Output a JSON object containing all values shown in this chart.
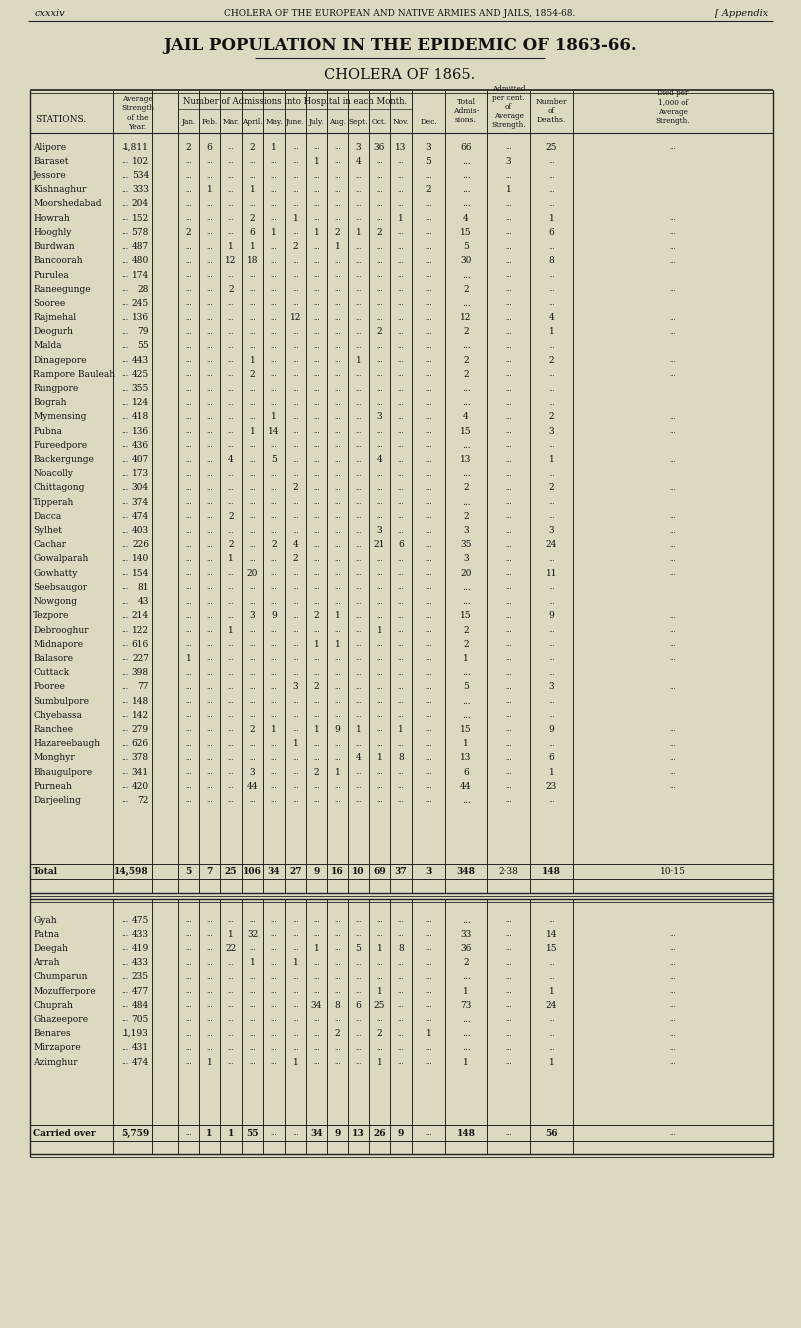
{
  "page_header_left": "cxxxiv",
  "page_header_center": "CHOLERA OF THE EUROPEAN AND NATIVE ARMIES AND JAILS, 1854-68.",
  "page_header_right": "[ Appendix",
  "title": "JAIL POPULATION IN THE EPIDEMIC OF 1863-66.",
  "subtitle": "CHOLERA OF 1865.",
  "months": [
    "Jan.",
    "Feb.",
    "Mar.",
    "April.",
    "May.",
    "June.",
    "July.",
    "Aug.",
    "Sept.",
    "Oct.",
    "Nov.",
    "Dec."
  ],
  "rows": [
    [
      "Alipore",
      "...",
      "1,811",
      "2",
      "6",
      "...",
      "2",
      "1",
      "...",
      "...",
      "...",
      "3",
      "36",
      "13",
      "3",
      "66",
      "...",
      "25",
      "..."
    ],
    [
      "Baraset",
      "...",
      "102",
      "...",
      "...",
      "...",
      "...",
      "...",
      "...",
      "1",
      "...",
      "4",
      "...",
      "...",
      "5",
      "...",
      "3",
      "..."
    ],
    [
      "Jessore",
      "...",
      "534",
      "...",
      "...",
      "...",
      "...",
      "...",
      "...",
      "...",
      "...",
      "...",
      "...",
      "...",
      "...",
      "...",
      "...",
      "..."
    ],
    [
      "Kishnaghur",
      "...",
      "333",
      "...",
      "1",
      "...",
      "1",
      "...",
      "...",
      "...",
      "...",
      "...",
      "...",
      "...",
      "2",
      "...",
      "1",
      "..."
    ],
    [
      "Moorshedabad",
      "...",
      "204",
      "...",
      "...",
      "...",
      "...",
      "...",
      "...",
      "...",
      "...",
      "...",
      "...",
      "...",
      "...",
      "...",
      "...",
      "..."
    ],
    [
      "Howrah",
      "...",
      "152",
      "...",
      "...",
      "...",
      "2",
      "...",
      "1",
      "...",
      "...",
      "...",
      "...",
      "1",
      "...",
      "4",
      "...",
      "1",
      "..."
    ],
    [
      "Hooghly",
      "...",
      "578",
      "2",
      "...",
      "...",
      "6",
      "1",
      "...",
      "1",
      "2",
      "1",
      "2",
      "...",
      "...",
      "15",
      "...",
      "6",
      "..."
    ],
    [
      "Burdwan",
      "...",
      "487",
      "...",
      "...",
      "1",
      "1",
      "...",
      "2",
      "...",
      "1",
      "...",
      "...",
      "...",
      "...",
      "5",
      "...",
      "...",
      "..."
    ],
    [
      "Bancoorah",
      "...",
      "480",
      "...",
      "...",
      "12",
      "18",
      "...",
      "...",
      "...",
      "...",
      "...",
      "...",
      "...",
      "...",
      "30",
      "...",
      "8",
      "..."
    ],
    [
      "Purulea",
      "...",
      "174",
      "...",
      "...",
      "...",
      "...",
      "...",
      "...",
      "...",
      "...",
      "...",
      "...",
      "...",
      "...",
      "...",
      "...",
      "..."
    ],
    [
      "Raneegunge",
      "...",
      "28",
      "...",
      "...",
      "2",
      "...",
      "...",
      "...",
      "...",
      "...",
      "...",
      "...",
      "...",
      "...",
      "2",
      "...",
      "...",
      "..."
    ],
    [
      "Sooree",
      "...",
      "245",
      "...",
      "...",
      "...",
      "...",
      "...",
      "...",
      "...",
      "...",
      "...",
      "...",
      "...",
      "...",
      "...",
      "...",
      "..."
    ],
    [
      "Rajmehal",
      "...",
      "136",
      "...",
      "...",
      "...",
      "...",
      "...",
      "12",
      "...",
      "...",
      "...",
      "...",
      "...",
      "...",
      "12",
      "...",
      "4",
      "..."
    ],
    [
      "Deogurh",
      "...",
      "79",
      "...",
      "...",
      "...",
      "...",
      "...",
      "...",
      "...",
      "...",
      "...",
      "2",
      "...",
      "...",
      "2",
      "...",
      "1",
      "..."
    ],
    [
      "Malda",
      "...",
      "55",
      "...",
      "...",
      "...",
      "...",
      "...",
      "...",
      "...",
      "...",
      "...",
      "...",
      "...",
      "...",
      "...",
      "...",
      "..."
    ],
    [
      "Dinagepore",
      "...",
      "443",
      "...",
      "...",
      "...",
      "1",
      "...",
      "...",
      "...",
      "...",
      "1",
      "...",
      "...",
      "...",
      "2",
      "...",
      "2",
      "..."
    ],
    [
      "Rampore Bauleah",
      "...",
      "425",
      "...",
      "...",
      "...",
      "2",
      "...",
      "...",
      "...",
      "...",
      "...",
      "...",
      "...",
      "...",
      "2",
      "...",
      "...",
      "..."
    ],
    [
      "Rungpore",
      "...",
      "355",
      "...",
      "...",
      "...",
      "...",
      "...",
      "...",
      "...",
      "...",
      "...",
      "...",
      "...",
      "...",
      "...",
      "...",
      "..."
    ],
    [
      "Bograh",
      "...",
      "124",
      "...",
      "...",
      "...",
      "...",
      "...",
      "...",
      "...",
      "...",
      "...",
      "...",
      "...",
      "...",
      "...",
      "...",
      "..."
    ],
    [
      "Mymensing",
      "...",
      "418",
      "...",
      "...",
      "...",
      "...",
      "1",
      "...",
      "...",
      "...",
      "...",
      "3",
      "...",
      "...",
      "4",
      "...",
      "2",
      "..."
    ],
    [
      "Pubna",
      "...",
      "136",
      "...",
      "...",
      "...",
      "1",
      "14",
      "...",
      "...",
      "...",
      "...",
      "...",
      "...",
      "...",
      "15",
      "...",
      "3",
      "..."
    ],
    [
      "Fureedpore",
      "...",
      "436",
      "...",
      "...",
      "...",
      "...",
      "...",
      "...",
      "...",
      "...",
      "...",
      "...",
      "...",
      "...",
      "...",
      "...",
      "..."
    ],
    [
      "Backergunge",
      "...",
      "407",
      "...",
      "...",
      "4",
      "...",
      "5",
      "...",
      "...",
      "...",
      "...",
      "4",
      "...",
      "...",
      "13",
      "...",
      "1",
      "..."
    ],
    [
      "Noacolly",
      "...",
      "173",
      "...",
      "...",
      "...",
      "...",
      "...",
      "...",
      "...",
      "...",
      "...",
      "...",
      "...",
      "...",
      "...",
      "...",
      "..."
    ],
    [
      "Chittagong",
      "...",
      "304",
      "...",
      "...",
      "...",
      "...",
      "...",
      "2",
      "...",
      "...",
      "...",
      "...",
      "...",
      "...",
      "2",
      "...",
      "2",
      "..."
    ],
    [
      "Tipperah",
      "...",
      "374",
      "...",
      "...",
      "...",
      "...",
      "...",
      "...",
      "...",
      "...",
      "...",
      "...",
      "...",
      "...",
      "...",
      "...",
      "..."
    ],
    [
      "Dacca",
      "...",
      "474",
      "...",
      "...",
      "2",
      "...",
      "...",
      "...",
      "...",
      "...",
      "...",
      "...",
      "...",
      "...",
      "2",
      "...",
      "...",
      "..."
    ],
    [
      "Sylhet",
      "...",
      "403",
      "...",
      "...",
      "...",
      "...",
      "...",
      "...",
      "...",
      "...",
      "...",
      "3",
      "...",
      "...",
      "3",
      "...",
      "3",
      "..."
    ],
    [
      "Cachar",
      "...",
      "226",
      "...",
      "...",
      "2",
      "...",
      "2",
      "4",
      "...",
      "...",
      "...",
      "21",
      "6",
      "...",
      "35",
      "...",
      "24",
      "..."
    ],
    [
      "Gowalparah",
      "...",
      "140",
      "...",
      "...",
      "1",
      "...",
      "...",
      "2",
      "...",
      "...",
      "...",
      "...",
      "...",
      "...",
      "3",
      "...",
      "...",
      "..."
    ],
    [
      "Gowhatty",
      "...",
      "154",
      "...",
      "...",
      "...",
      "20",
      "...",
      "...",
      "...",
      "...",
      "...",
      "...",
      "...",
      "...",
      "20",
      "...",
      "11",
      "..."
    ],
    [
      "Seebsaugor",
      "...",
      "81",
      "...",
      "...",
      "...",
      "...",
      "...",
      "...",
      "...",
      "...",
      "...",
      "...",
      "...",
      "...",
      "...",
      "...",
      "..."
    ],
    [
      "Nowgong",
      "...",
      "43",
      "...",
      "...",
      "...",
      "...",
      "...",
      "...",
      "...",
      "...",
      "...",
      "...",
      "...",
      "...",
      "...",
      "...",
      "..."
    ],
    [
      "Tezpore",
      "...",
      "214",
      "...",
      "...",
      "...",
      "3",
      "9",
      "...",
      "2",
      "1",
      "...",
      "...",
      "...",
      "...",
      "15",
      "...",
      "9",
      "..."
    ],
    [
      "Debrooghur",
      "...",
      "122",
      "...",
      "...",
      "1",
      "...",
      "...",
      "...",
      "...",
      "...",
      "...",
      "1",
      "...",
      "...",
      "2",
      "...",
      "...",
      "..."
    ],
    [
      "Midnapore",
      "...",
      "616",
      "...",
      "...",
      "...",
      "...",
      "...",
      "...",
      "1",
      "1",
      "...",
      "...",
      "...",
      "...",
      "2",
      "...",
      "...",
      "..."
    ],
    [
      "Balasore",
      "...",
      "227",
      "1",
      "...",
      "...",
      "...",
      "...",
      "...",
      "...",
      "...",
      "...",
      "...",
      "...",
      "...",
      "1",
      "...",
      "...",
      "..."
    ],
    [
      "Cuttack",
      "...",
      "398",
      "...",
      "...",
      "...",
      "...",
      "...",
      "...",
      "...",
      "...",
      "...",
      "...",
      "...",
      "...",
      "...",
      "...",
      "..."
    ],
    [
      "Pooree",
      "...",
      "77",
      "...",
      "...",
      "...",
      "...",
      "...",
      "3",
      "2",
      "...",
      "...",
      "...",
      "...",
      "...",
      "5",
      "...",
      "3",
      "..."
    ],
    [
      "Sumbulpore",
      "...",
      "148",
      "...",
      "...",
      "...",
      "...",
      "...",
      "...",
      "...",
      "...",
      "...",
      "...",
      "...",
      "...",
      "...",
      "...",
      "..."
    ],
    [
      "Chyebassa",
      "...",
      "142",
      "...",
      "...",
      "...",
      "...",
      "...",
      "...",
      "...",
      "...",
      "...",
      "...",
      "...",
      "...",
      "...",
      "...",
      "..."
    ],
    [
      "Ranchee",
      "...",
      "279",
      "...",
      "...",
      "...",
      "2",
      "1",
      "...",
      "1",
      "9",
      "1",
      "...",
      "1",
      "...",
      "15",
      "...",
      "9",
      "..."
    ],
    [
      "Hazareebaugh",
      "...",
      "626",
      "...",
      "...",
      "...",
      "...",
      "...",
      "1",
      "...",
      "...",
      "...",
      "...",
      "...",
      "...",
      "1",
      "...",
      "...",
      "..."
    ],
    [
      "Monghyr",
      "...",
      "378",
      "...",
      "...",
      "...",
      "...",
      "...",
      "...",
      "...",
      "...",
      "4",
      "1",
      "8",
      "...",
      "13",
      "...",
      "6",
      "..."
    ],
    [
      "Bhaugulpore",
      "...",
      "341",
      "...",
      "...",
      "...",
      "3",
      "...",
      "...",
      "2",
      "1",
      "...",
      "...",
      "...",
      "...",
      "6",
      "...",
      "1",
      "..."
    ],
    [
      "Purneah",
      "...",
      "420",
      "...",
      "...",
      "...",
      "44",
      "...",
      "...",
      "...",
      "...",
      "...",
      "...",
      "...",
      "...",
      "44",
      "...",
      "23",
      "..."
    ],
    [
      "Darjeeling",
      "...",
      "72",
      "...",
      "...",
      "...",
      "...",
      "...",
      "...",
      "...",
      "...",
      "...",
      "...",
      "...",
      "...",
      "...",
      "...",
      "..."
    ]
  ],
  "total_row": [
    "Total",
    "...",
    "14,598",
    "5",
    "7",
    "25",
    "106",
    "34",
    "27",
    "9",
    "16",
    "10",
    "69",
    "37",
    "3",
    "348",
    "2·38",
    "148",
    "10·15"
  ],
  "section2_rows": [
    [
      "Gyah",
      "...",
      "475",
      "...",
      "...",
      "...",
      "...",
      "...",
      "...",
      "...",
      "...",
      "...",
      "...",
      "...",
      "...",
      "...",
      "...",
      "..."
    ],
    [
      "Patna",
      "...",
      "433",
      "...",
      "...",
      "1",
      "32",
      "...",
      "...",
      "...",
      "...",
      "...",
      "...",
      "...",
      "...",
      "33",
      "...",
      "14",
      "..."
    ],
    [
      "Deegah",
      "...",
      "419",
      "...",
      "...",
      "22",
      "...",
      "...",
      "...",
      "1",
      "...",
      "5",
      "1",
      "8",
      "...",
      "36",
      "...",
      "15",
      "..."
    ],
    [
      "Arrah",
      "...",
      "433",
      "...",
      "...",
      "...",
      "1",
      "...",
      "1",
      "...",
      "...",
      "...",
      "...",
      "...",
      "...",
      "2",
      "...",
      "...",
      "..."
    ],
    [
      "Chumparun",
      "...",
      "235",
      "...",
      "...",
      "...",
      "...",
      "...",
      "...",
      "...",
      "...",
      "...",
      "...",
      "...",
      "...",
      "...",
      "...",
      "...",
      "..."
    ],
    [
      "Mozufferpore",
      "...",
      "477",
      "...",
      "...",
      "...",
      "...",
      "...",
      "...",
      "...",
      "...",
      "...",
      "1",
      "...",
      "...",
      "1",
      "...",
      "1",
      "..."
    ],
    [
      "Chuprah",
      "...",
      "484",
      "...",
      "...",
      "...",
      "...",
      "...",
      "...",
      "34",
      "8",
      "6",
      "25",
      "...",
      "...",
      "73",
      "...",
      "24",
      "..."
    ],
    [
      "Ghazeepore",
      "...",
      "705",
      "...",
      "...",
      "...",
      "...",
      "...",
      "...",
      "...",
      "...",
      "...",
      "...",
      "...",
      "...",
      "...",
      "...",
      "...",
      "..."
    ],
    [
      "Benares",
      "...",
      "1,193",
      "...",
      "...",
      "...",
      "...",
      "...",
      "...",
      "...",
      "2",
      "...",
      "2",
      "...",
      "1",
      "...",
      "...",
      "...",
      "..."
    ],
    [
      "Mirzapore",
      "...",
      "431",
      "...",
      "...",
      "...",
      "...",
      "...",
      "...",
      "...",
      "...",
      "...",
      "...",
      "...",
      "...",
      "...",
      "...",
      "...",
      "..."
    ],
    [
      "Azimghur",
      "...",
      "474",
      "...",
      "1",
      "...",
      "...",
      "...",
      "1",
      "...",
      "...",
      "...",
      "1",
      "...",
      "...",
      "1",
      "...",
      "1",
      "..."
    ]
  ],
  "carried_row": [
    "Carried over",
    "...",
    "5,759",
    "...",
    "1",
    "1",
    "55",
    "...",
    "...",
    "34",
    "9",
    "13",
    "26",
    "9",
    "...",
    "148",
    "...",
    "56",
    "..."
  ],
  "bg_color": "#ddd8c0",
  "text_color": "#111111",
  "line_color": "#222222"
}
